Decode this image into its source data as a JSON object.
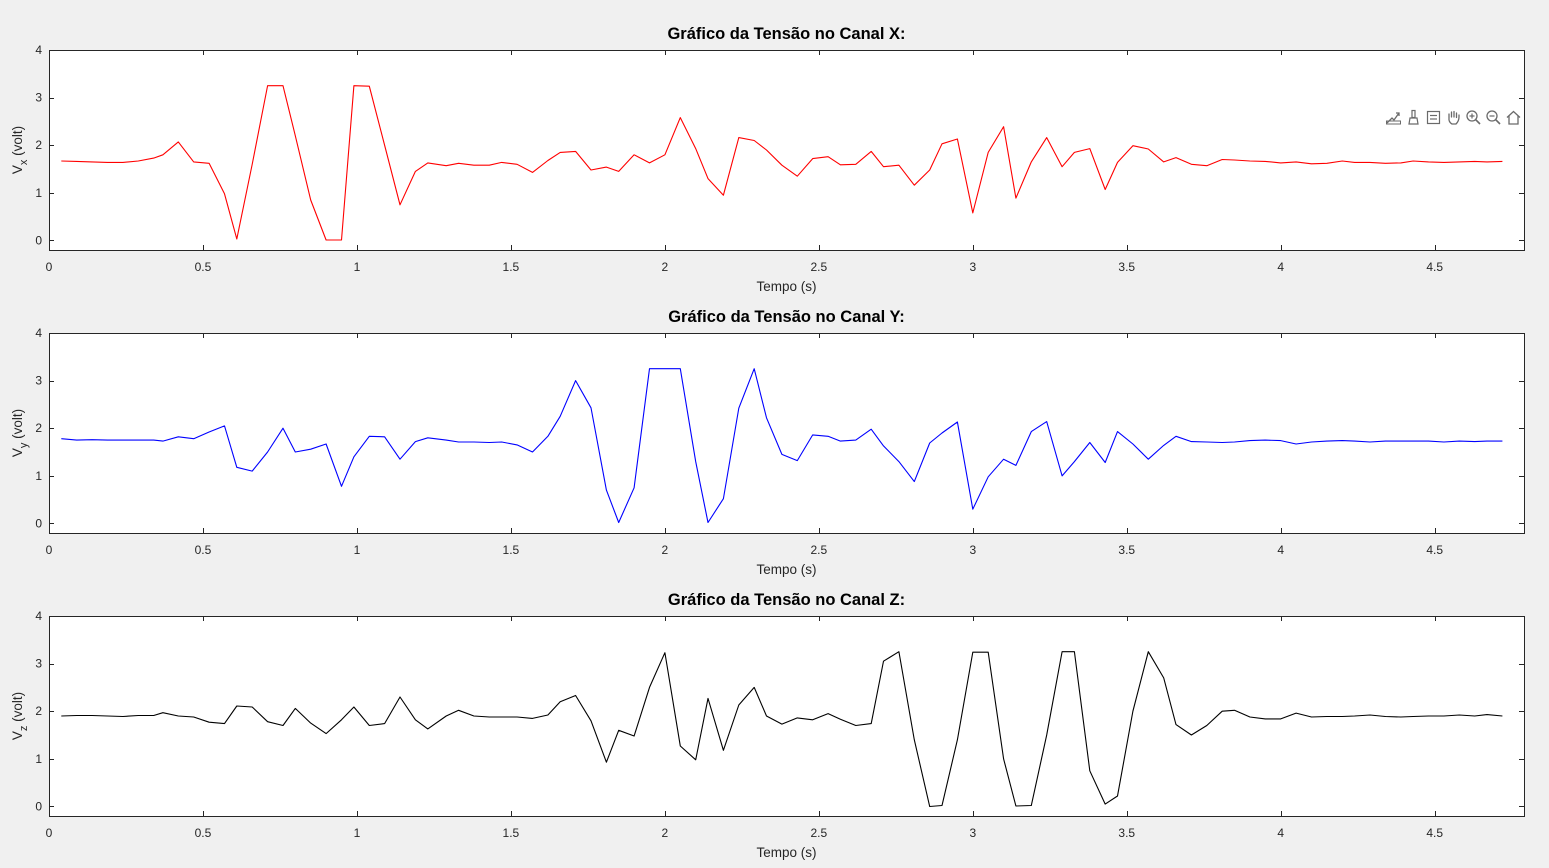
{
  "toolbar": {
    "icons": [
      "export-icon",
      "brush-icon",
      "datatip-icon",
      "pan-icon",
      "zoom-in-icon",
      "zoom-out-icon",
      "home-icon"
    ]
  },
  "chart_data": [
    {
      "type": "line",
      "title": "Gráfico da Tensão no Canal X:",
      "xlabel": "Tempo (s)",
      "ylabel_main": "V",
      "ylabel_sub": "x",
      "ylabel_tail": " (volt)",
      "xlim": [
        0,
        4.79
      ],
      "ylim": [
        -0.2,
        4
      ],
      "xticks": [
        0,
        0.5,
        1,
        1.5,
        2,
        2.5,
        3,
        3.5,
        4,
        4.5
      ],
      "xtick_labels": [
        "0",
        "0.5",
        "1",
        "1.5",
        "2",
        "2.5",
        "3",
        "3.5",
        "4",
        "4.5"
      ],
      "yticks": [
        0,
        1,
        2,
        3,
        4
      ],
      "ytick_labels": [
        "0",
        "1",
        "2",
        "3",
        "4"
      ],
      "grid": false,
      "color": "#ff0000",
      "x": [
        0.04,
        0.09,
        0.14,
        0.19,
        0.24,
        0.29,
        0.34,
        0.37,
        0.42,
        0.47,
        0.52,
        0.57,
        0.61,
        0.66,
        0.71,
        0.76,
        0.8,
        0.85,
        0.9,
        0.95,
        0.99,
        1.04,
        1.09,
        1.14,
        1.19,
        1.23,
        1.29,
        1.33,
        1.38,
        1.43,
        1.47,
        1.52,
        1.57,
        1.62,
        1.66,
        1.71,
        1.76,
        1.81,
        1.85,
        1.9,
        1.95,
        2.0,
        2.05,
        2.1,
        2.14,
        2.19,
        2.24,
        2.29,
        2.33,
        2.38,
        2.43,
        2.48,
        2.53,
        2.57,
        2.62,
        2.67,
        2.71,
        2.76,
        2.81,
        2.86,
        2.9,
        2.95,
        3.0,
        3.05,
        3.1,
        3.14,
        3.19,
        3.24,
        3.29,
        3.33,
        3.38,
        3.43,
        3.47,
        3.52,
        3.57,
        3.62,
        3.66,
        3.71,
        3.76,
        3.81,
        3.85,
        3.9,
        3.95,
        4.0,
        4.05,
        4.1,
        4.15,
        4.2,
        4.24,
        4.29,
        4.34,
        4.39,
        4.43,
        4.48,
        4.53,
        4.58,
        4.63,
        4.67,
        4.72
      ],
      "y": [
        1.67,
        1.66,
        1.65,
        1.64,
        1.64,
        1.67,
        1.73,
        1.8,
        2.07,
        1.65,
        1.62,
        0.98,
        0.03,
        1.6,
        3.25,
        3.25,
        2.2,
        0.85,
        0.01,
        0.01,
        3.25,
        3.24,
        2.0,
        0.75,
        1.45,
        1.63,
        1.57,
        1.62,
        1.58,
        1.58,
        1.64,
        1.6,
        1.43,
        1.68,
        1.85,
        1.87,
        1.48,
        1.54,
        1.45,
        1.8,
        1.63,
        1.8,
        2.58,
        1.93,
        1.3,
        0.95,
        2.16,
        2.1,
        1.9,
        1.58,
        1.35,
        1.72,
        1.76,
        1.59,
        1.6,
        1.87,
        1.55,
        1.58,
        1.16,
        1.48,
        2.03,
        2.13,
        0.58,
        1.85,
        2.39,
        0.89,
        1.65,
        2.16,
        1.55,
        1.85,
        1.93,
        1.07,
        1.64,
        1.99,
        1.92,
        1.65,
        1.74,
        1.6,
        1.57,
        1.7,
        1.69,
        1.67,
        1.66,
        1.63,
        1.65,
        1.61,
        1.62,
        1.67,
        1.64,
        1.64,
        1.62,
        1.63,
        1.67,
        1.65,
        1.64,
        1.65,
        1.66,
        1.65,
        1.66
      ]
    },
    {
      "type": "line",
      "title": "Gráfico da Tensão no Canal Y:",
      "xlabel": "Tempo (s)",
      "ylabel_main": "V",
      "ylabel_sub": "y",
      "ylabel_tail": " (volt)",
      "xlim": [
        0,
        4.79
      ],
      "ylim": [
        -0.2,
        4
      ],
      "xticks": [
        0,
        0.5,
        1,
        1.5,
        2,
        2.5,
        3,
        3.5,
        4,
        4.5
      ],
      "xtick_labels": [
        "0",
        "0.5",
        "1",
        "1.5",
        "2",
        "2.5",
        "3",
        "3.5",
        "4",
        "4.5"
      ],
      "yticks": [
        0,
        1,
        2,
        3,
        4
      ],
      "ytick_labels": [
        "0",
        "1",
        "2",
        "3",
        "4"
      ],
      "grid": false,
      "color": "#0000ff",
      "x": [
        0.04,
        0.09,
        0.14,
        0.19,
        0.24,
        0.29,
        0.34,
        0.37,
        0.42,
        0.47,
        0.52,
        0.57,
        0.61,
        0.66,
        0.71,
        0.76,
        0.8,
        0.85,
        0.9,
        0.95,
        0.99,
        1.04,
        1.09,
        1.14,
        1.19,
        1.23,
        1.29,
        1.33,
        1.38,
        1.43,
        1.47,
        1.52,
        1.57,
        1.62,
        1.66,
        1.71,
        1.76,
        1.81,
        1.85,
        1.9,
        1.95,
        2.0,
        2.05,
        2.1,
        2.14,
        2.19,
        2.24,
        2.29,
        2.33,
        2.38,
        2.43,
        2.48,
        2.53,
        2.57,
        2.62,
        2.67,
        2.71,
        2.76,
        2.81,
        2.86,
        2.9,
        2.95,
        3.0,
        3.05,
        3.1,
        3.14,
        3.19,
        3.24,
        3.29,
        3.33,
        3.38,
        3.43,
        3.47,
        3.52,
        3.57,
        3.62,
        3.66,
        3.71,
        3.76,
        3.81,
        3.85,
        3.9,
        3.95,
        4.0,
        4.05,
        4.1,
        4.15,
        4.2,
        4.24,
        4.29,
        4.34,
        4.39,
        4.43,
        4.48,
        4.53,
        4.58,
        4.63,
        4.67,
        4.72
      ],
      "y": [
        1.78,
        1.75,
        1.76,
        1.75,
        1.75,
        1.75,
        1.75,
        1.73,
        1.82,
        1.78,
        1.92,
        2.05,
        1.18,
        1.1,
        1.5,
        2.0,
        1.5,
        1.56,
        1.67,
        0.78,
        1.4,
        1.83,
        1.82,
        1.35,
        1.72,
        1.8,
        1.75,
        1.71,
        1.71,
        1.7,
        1.71,
        1.65,
        1.5,
        1.83,
        2.25,
        3.0,
        2.43,
        0.7,
        0.02,
        0.75,
        3.25,
        3.25,
        3.25,
        1.3,
        0.02,
        0.52,
        2.42,
        3.25,
        2.22,
        1.45,
        1.32,
        1.86,
        1.83,
        1.73,
        1.75,
        1.98,
        1.63,
        1.3,
        0.88,
        1.69,
        1.9,
        2.13,
        0.3,
        0.98,
        1.35,
        1.22,
        1.93,
        2.14,
        1.0,
        1.3,
        1.7,
        1.28,
        1.93,
        1.67,
        1.35,
        1.64,
        1.83,
        1.72,
        1.71,
        1.7,
        1.71,
        1.74,
        1.75,
        1.74,
        1.67,
        1.71,
        1.73,
        1.74,
        1.73,
        1.71,
        1.73,
        1.73,
        1.73,
        1.73,
        1.71,
        1.73,
        1.72,
        1.73,
        1.73
      ]
    },
    {
      "type": "line",
      "title": "Gráfico da Tensão no Canal Z:",
      "xlabel": "Tempo (s)",
      "ylabel_main": "V",
      "ylabel_sub": "z",
      "ylabel_tail": " (volt)",
      "xlim": [
        0,
        4.79
      ],
      "ylim": [
        -0.2,
        4
      ],
      "xticks": [
        0,
        0.5,
        1,
        1.5,
        2,
        2.5,
        3,
        3.5,
        4,
        4.5
      ],
      "xtick_labels": [
        "0",
        "0.5",
        "1",
        "1.5",
        "2",
        "2.5",
        "3",
        "3.5",
        "4",
        "4.5"
      ],
      "yticks": [
        0,
        1,
        2,
        3,
        4
      ],
      "ytick_labels": [
        "0",
        "1",
        "2",
        "3",
        "4"
      ],
      "grid": false,
      "color": "#000000",
      "x": [
        0.04,
        0.09,
        0.14,
        0.19,
        0.24,
        0.29,
        0.34,
        0.37,
        0.42,
        0.47,
        0.52,
        0.57,
        0.61,
        0.66,
        0.71,
        0.76,
        0.8,
        0.85,
        0.9,
        0.95,
        0.99,
        1.04,
        1.09,
        1.14,
        1.19,
        1.23,
        1.29,
        1.33,
        1.38,
        1.43,
        1.47,
        1.52,
        1.57,
        1.62,
        1.66,
        1.71,
        1.76,
        1.81,
        1.85,
        1.9,
        1.95,
        2.0,
        2.05,
        2.1,
        2.14,
        2.19,
        2.24,
        2.29,
        2.33,
        2.38,
        2.43,
        2.48,
        2.53,
        2.57,
        2.62,
        2.67,
        2.71,
        2.76,
        2.81,
        2.86,
        2.9,
        2.95,
        3.0,
        3.05,
        3.1,
        3.14,
        3.19,
        3.24,
        3.29,
        3.33,
        3.38,
        3.43,
        3.47,
        3.52,
        3.57,
        3.62,
        3.66,
        3.71,
        3.76,
        3.81,
        3.85,
        3.9,
        3.95,
        4.0,
        4.05,
        4.1,
        4.15,
        4.2,
        4.24,
        4.29,
        4.34,
        4.39,
        4.43,
        4.48,
        4.53,
        4.58,
        4.63,
        4.67,
        4.72
      ],
      "y": [
        1.9,
        1.91,
        1.91,
        1.9,
        1.89,
        1.91,
        1.91,
        1.97,
        1.9,
        1.88,
        1.77,
        1.74,
        2.11,
        2.09,
        1.78,
        1.7,
        2.06,
        1.75,
        1.53,
        1.82,
        2.09,
        1.7,
        1.74,
        2.3,
        1.82,
        1.63,
        1.9,
        2.02,
        1.9,
        1.88,
        1.88,
        1.88,
        1.85,
        1.92,
        2.2,
        2.33,
        1.8,
        0.93,
        1.6,
        1.48,
        2.5,
        3.23,
        1.27,
        0.98,
        2.27,
        1.18,
        2.13,
        2.5,
        1.9,
        1.73,
        1.86,
        1.82,
        1.95,
        1.83,
        1.7,
        1.74,
        3.05,
        3.25,
        1.4,
        0.0,
        0.02,
        1.4,
        3.24,
        3.24,
        1.0,
        0.01,
        0.02,
        1.5,
        3.25,
        3.25,
        0.75,
        0.05,
        0.22,
        2.0,
        3.25,
        2.7,
        1.72,
        1.5,
        1.7,
        2.0,
        2.02,
        1.88,
        1.84,
        1.84,
        1.96,
        1.88,
        1.89,
        1.89,
        1.9,
        1.92,
        1.89,
        1.88,
        1.89,
        1.9,
        1.9,
        1.92,
        1.9,
        1.93,
        1.9
      ]
    }
  ]
}
